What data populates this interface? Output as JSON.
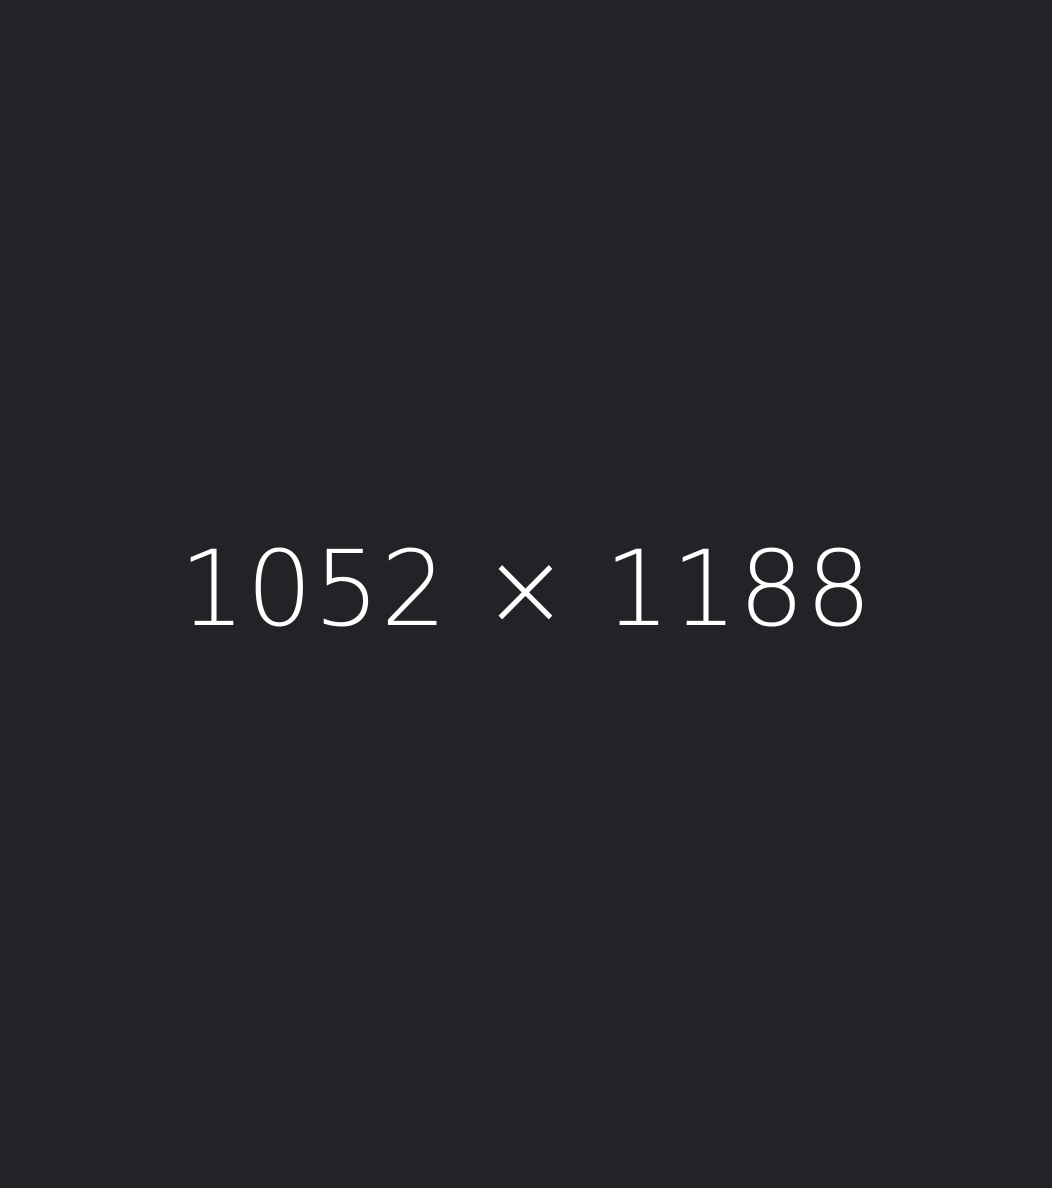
{
  "placeholder": {
    "label": "1052 × 1188",
    "background_color": "#232327",
    "text_color": "#ffffff"
  }
}
